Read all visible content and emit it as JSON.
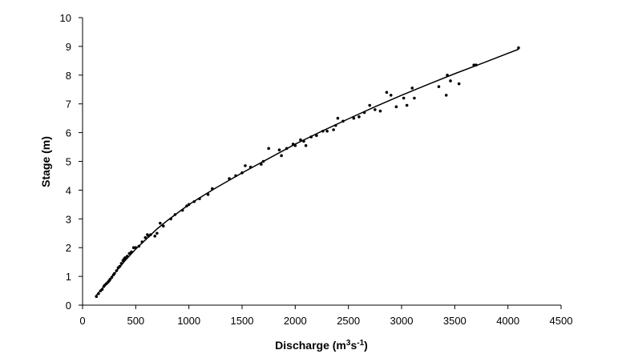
{
  "chart_data": {
    "type": "scatter",
    "xlabel": [
      {
        "text": "Discharge (m"
      },
      {
        "text": "3",
        "sup": true
      },
      {
        "text": "s"
      },
      {
        "text": "-1",
        "sup": true
      },
      {
        "text": ")"
      }
    ],
    "ylabel": "Stage (m)",
    "xlim": [
      0,
      4500
    ],
    "xticks": [
      0,
      500,
      1000,
      1500,
      2000,
      2500,
      3000,
      3500,
      4000,
      4500
    ],
    "ylim": [
      0,
      10
    ],
    "yticks": [
      0,
      1,
      2,
      3,
      4,
      5,
      6,
      7,
      8,
      9,
      10
    ],
    "grid": false,
    "series": [
      {
        "kind": "points",
        "color": "#000000",
        "x": [
          130,
          150,
          170,
          185,
          200,
          210,
          225,
          240,
          250,
          260,
          275,
          290,
          300,
          320,
          335,
          350,
          365,
          380,
          390,
          400,
          420,
          440,
          460,
          480,
          500,
          530,
          560,
          590,
          610,
          620,
          640,
          680,
          700,
          730,
          760,
          830,
          870,
          940,
          980,
          1000,
          1050,
          1100,
          1180,
          1220,
          1380,
          1440,
          1500,
          1530,
          1580,
          1680,
          1700,
          1750,
          1850,
          1870,
          1920,
          1980,
          2000,
          2050,
          2080,
          2100,
          2150,
          2200,
          2260,
          2300,
          2360,
          2380,
          2400,
          2450,
          2550,
          2600,
          2650,
          2700,
          2750,
          2800,
          2860,
          2900,
          2950,
          3020,
          3050,
          3100,
          3120,
          3350,
          3420,
          3430,
          3460,
          3540,
          3680,
          3700,
          4100
        ],
        "values": [
          0.3,
          0.4,
          0.5,
          0.55,
          0.65,
          0.7,
          0.75,
          0.8,
          0.85,
          0.9,
          0.97,
          1.05,
          1.1,
          1.2,
          1.3,
          1.35,
          1.45,
          1.55,
          1.6,
          1.65,
          1.7,
          1.8,
          1.85,
          2.0,
          2.0,
          2.05,
          2.2,
          2.35,
          2.45,
          2.4,
          2.45,
          2.4,
          2.5,
          2.85,
          2.75,
          3.0,
          3.15,
          3.3,
          3.45,
          3.5,
          3.6,
          3.7,
          3.85,
          4.05,
          4.4,
          4.5,
          4.6,
          4.85,
          4.8,
          4.9,
          5.0,
          5.45,
          5.4,
          5.2,
          5.45,
          5.6,
          5.55,
          5.75,
          5.7,
          5.55,
          5.85,
          5.9,
          6.05,
          6.05,
          6.1,
          6.25,
          6.5,
          6.4,
          6.5,
          6.55,
          6.7,
          6.95,
          6.8,
          6.75,
          7.4,
          7.3,
          6.9,
          7.2,
          6.95,
          7.55,
          7.2,
          7.6,
          7.3,
          8.0,
          7.8,
          7.7,
          8.35,
          8.35,
          8.95
        ]
      },
      {
        "kind": "line",
        "color": "#000000",
        "x": [
          120,
          200,
          300,
          400,
          500,
          600,
          700,
          800,
          1000,
          1250,
          1500,
          1750,
          2000,
          2250,
          2500,
          2750,
          3000,
          3250,
          3500,
          3750,
          4100
        ],
        "values": [
          0.3,
          0.65,
          1.1,
          1.55,
          1.95,
          2.3,
          2.65,
          2.95,
          3.5,
          4.07,
          4.6,
          5.1,
          5.6,
          6.05,
          6.48,
          6.9,
          7.3,
          7.68,
          8.05,
          8.4,
          8.9
        ]
      }
    ]
  }
}
